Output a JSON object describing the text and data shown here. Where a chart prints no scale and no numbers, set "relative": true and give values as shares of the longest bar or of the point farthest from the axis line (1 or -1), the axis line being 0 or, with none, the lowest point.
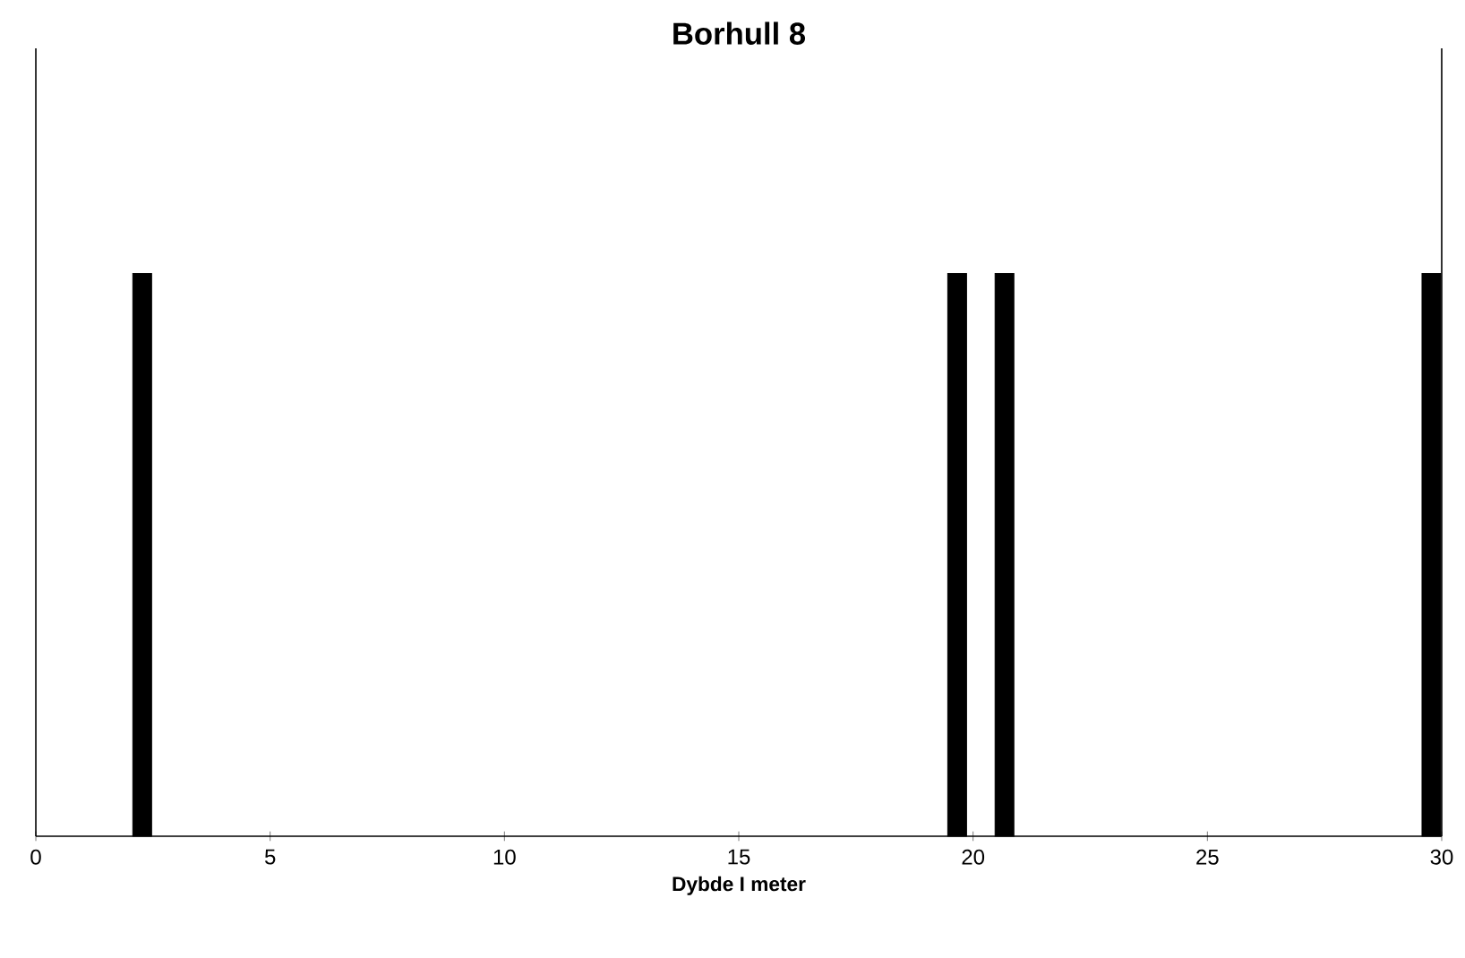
{
  "chart_data": {
    "type": "bar",
    "title": "Borhull 8",
    "xlabel": "Dybde I meter",
    "x": [
      2.27,
      19.66,
      20.67,
      29.78
    ],
    "values": [
      1,
      1,
      1,
      1
    ],
    "relative": true,
    "color": "#000000",
    "xlim": [
      0,
      30
    ],
    "xticks": [
      0,
      5,
      10,
      15,
      20,
      25,
      30
    ]
  }
}
